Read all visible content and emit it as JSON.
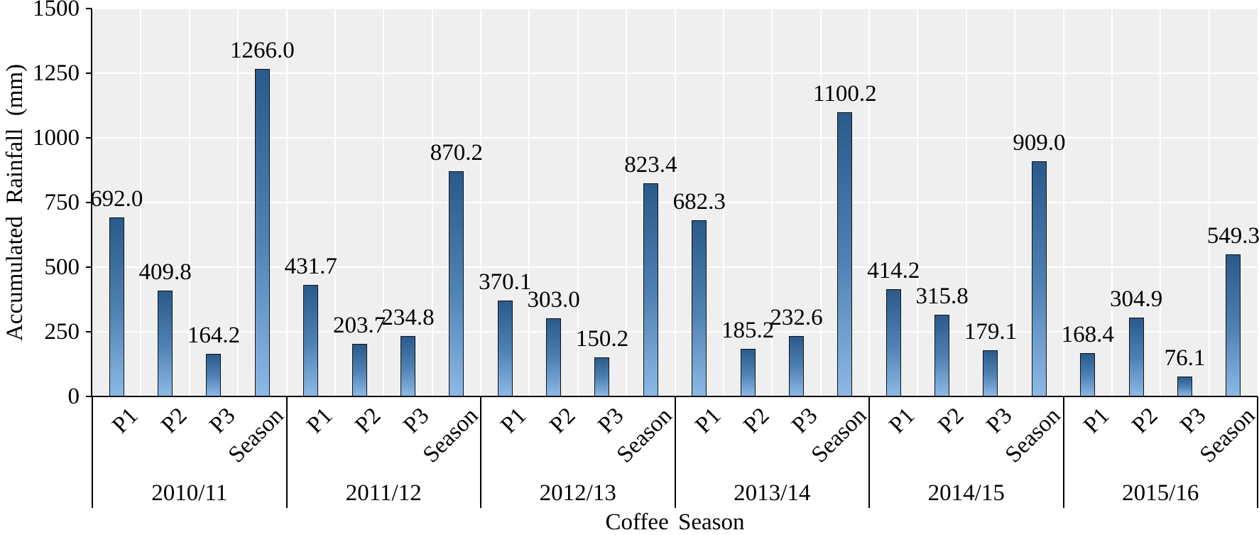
{
  "chart_data": {
    "type": "bar",
    "title": "",
    "xlabel": "Coffee Season",
    "ylabel": "Accumulated Rainfall (mm)",
    "ylim": [
      0,
      1500
    ],
    "yticks": [
      0,
      250,
      500,
      750,
      1000,
      1250,
      1500
    ],
    "grid": "major horizontal and per-category vertical white gridlines on gray plot background",
    "legend": "none",
    "value_label_decimals": 1,
    "sub_categories": [
      "P1",
      "P2",
      "P3",
      "Season"
    ],
    "groups": [
      {
        "label": "2010/11",
        "values": [
          692.0,
          409.8,
          164.2,
          1266.0
        ]
      },
      {
        "label": "2011/12",
        "values": [
          431.7,
          203.7,
          234.8,
          870.2
        ]
      },
      {
        "label": "2012/13",
        "values": [
          370.1,
          303.0,
          150.2,
          823.4
        ]
      },
      {
        "label": "2013/14",
        "values": [
          682.3,
          185.2,
          232.6,
          1100.2
        ]
      },
      {
        "label": "2014/15",
        "values": [
          414.2,
          315.8,
          179.1,
          909.0
        ]
      },
      {
        "label": "2015/16",
        "values": [
          168.4,
          304.9,
          76.1,
          549.3
        ]
      }
    ]
  },
  "colors": {
    "bar_gradient_top": "#2A5A8C",
    "bar_gradient_mid": "#4E81B4",
    "bar_gradient_bottom": "#8CB9E6",
    "bar_border": "#121212",
    "plot_background": "#EFEFEF",
    "gridline": "#FFFFFF",
    "axis_line": "#000000",
    "text": "#000000"
  }
}
